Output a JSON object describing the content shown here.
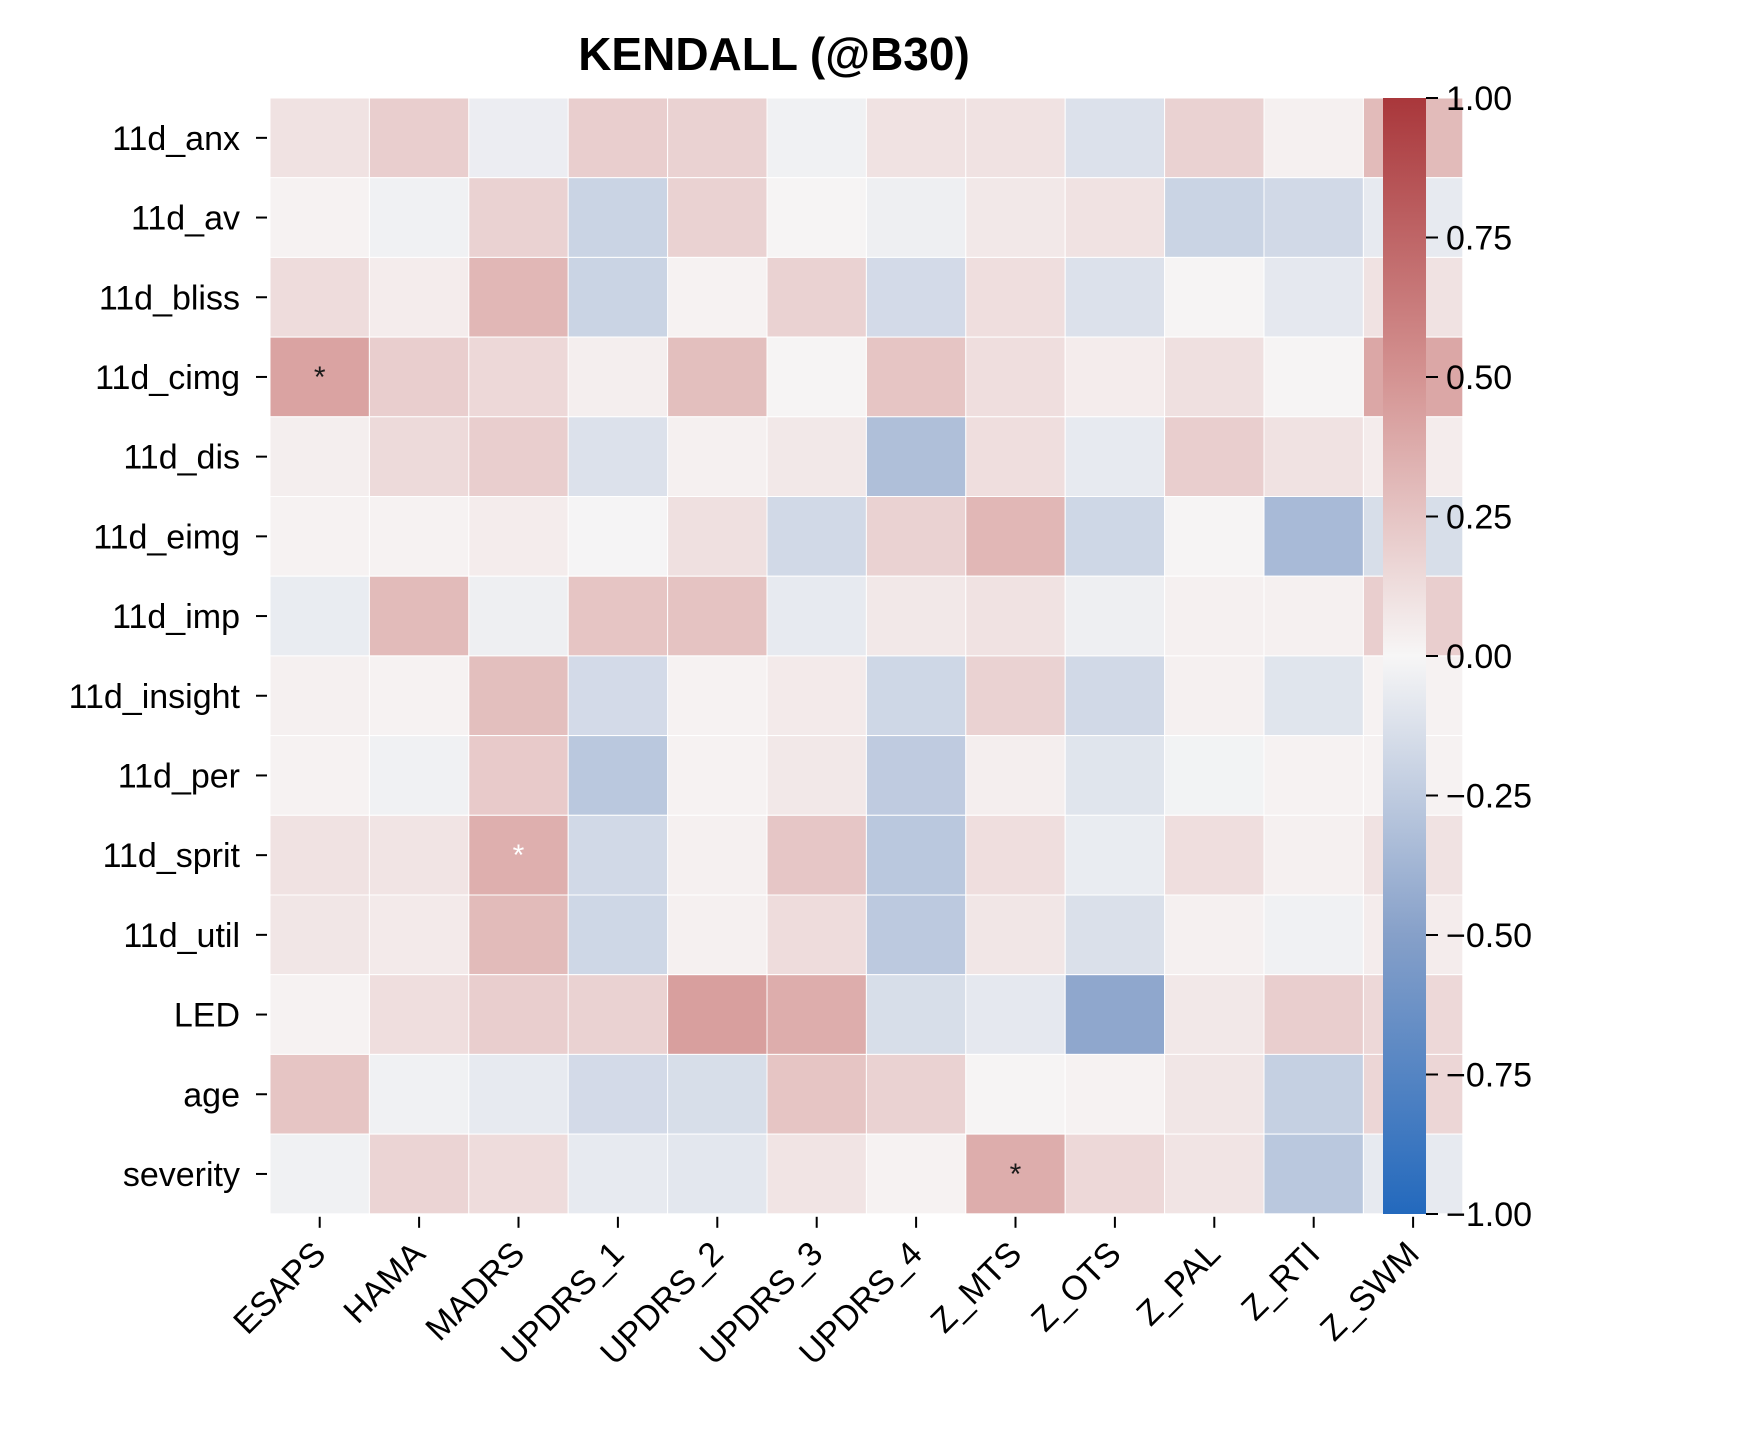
{
  "chart_data": {
    "type": "heatmap",
    "title": "KENDALL (@B30)",
    "x_categories": [
      "ESAPS",
      "HAMA",
      "MADRS",
      "UPDRS_1",
      "UPDRS_2",
      "UPDRS_3",
      "UPDRS_4",
      "Z_MTS",
      "Z_OTS",
      "Z_PAL",
      "Z_RTI",
      "Z_SWM"
    ],
    "y_categories": [
      "11d_anx",
      "11d_av",
      "11d_bliss",
      "11d_cimg",
      "11d_dis",
      "11d_eimg",
      "11d_imp",
      "11d_insight",
      "11d_per",
      "11d_sprit",
      "11d_util",
      "LED",
      "age",
      "severity"
    ],
    "values": [
      [
        0.1,
        0.2,
        -0.05,
        0.2,
        0.18,
        -0.03,
        0.1,
        0.1,
        -0.12,
        0.18,
        0.03,
        0.3
      ],
      [
        0.02,
        -0.03,
        0.18,
        -0.2,
        0.18,
        0.01,
        -0.04,
        0.07,
        0.1,
        -0.2,
        -0.17,
        -0.07
      ],
      [
        0.13,
        0.05,
        0.32,
        -0.2,
        0.02,
        0.18,
        -0.16,
        0.12,
        -0.12,
        0.01,
        -0.08,
        0.1
      ],
      [
        0.42,
        0.2,
        0.15,
        0.04,
        0.28,
        0.01,
        0.25,
        0.12,
        0.05,
        0.11,
        0.01,
        0.4
      ],
      [
        0.04,
        0.14,
        0.2,
        -0.12,
        0.03,
        0.07,
        -0.32,
        0.12,
        -0.07,
        0.2,
        0.1,
        0.05
      ],
      [
        0.02,
        0.02,
        0.05,
        -0.01,
        0.11,
        -0.17,
        0.18,
        0.32,
        -0.18,
        0.01,
        -0.35,
        -0.14
      ],
      [
        -0.06,
        0.3,
        -0.04,
        0.25,
        0.26,
        -0.07,
        0.07,
        0.1,
        -0.04,
        0.03,
        0.03,
        0.2
      ],
      [
        0.03,
        0.02,
        0.28,
        -0.16,
        0.02,
        0.06,
        -0.18,
        0.18,
        -0.17,
        0.03,
        -0.1,
        0.02
      ],
      [
        0.02,
        -0.03,
        0.22,
        -0.27,
        0.02,
        0.07,
        -0.25,
        0.04,
        -0.1,
        -0.02,
        0.02,
        0.02
      ],
      [
        0.1,
        0.09,
        0.36,
        -0.17,
        0.03,
        0.24,
        -0.27,
        0.12,
        -0.06,
        0.12,
        0.03,
        0.1
      ],
      [
        0.08,
        0.06,
        0.3,
        -0.18,
        0.03,
        0.13,
        -0.26,
        0.08,
        -0.13,
        0.03,
        -0.03,
        0.05
      ],
      [
        0.02,
        0.12,
        0.2,
        0.18,
        0.44,
        0.37,
        -0.14,
        -0.08,
        -0.46,
        0.07,
        0.2,
        0.15
      ],
      [
        0.25,
        -0.03,
        -0.07,
        -0.16,
        -0.14,
        0.25,
        0.18,
        0.01,
        0.02,
        0.08,
        -0.22,
        0.16
      ],
      [
        -0.03,
        0.17,
        0.13,
        -0.07,
        -0.09,
        0.09,
        0.02,
        0.37,
        0.15,
        0.09,
        -0.27,
        -0.07
      ]
    ],
    "annotations": [
      {
        "row": 3,
        "col": 0,
        "text": "*",
        "color": "#1a1a1a"
      },
      {
        "row": 3,
        "col": 11,
        "text": "*",
        "color": "#1a1a1a"
      },
      {
        "row": 9,
        "col": 2,
        "text": "*",
        "color": "#ffffff"
      },
      {
        "row": 13,
        "col": 7,
        "text": "*",
        "color": "#1a1a1a"
      }
    ],
    "colorbar": {
      "vmin": -1.0,
      "vmax": 1.0,
      "ticks": [
        1.0,
        0.75,
        0.5,
        0.25,
        0.0,
        -0.25,
        -0.5,
        -0.75,
        -1.0
      ],
      "tick_labels": [
        "1.00",
        "0.75",
        "0.50",
        "0.25",
        "0.00",
        "−0.25",
        "−0.50",
        "−0.75",
        "−1.00"
      ],
      "colormap": "vlag",
      "colors": [
        "#2369bd",
        "#ffffff",
        "#a9373b"
      ]
    },
    "grid_line_color": "#ffffff",
    "xlabel": "",
    "ylabel": ""
  }
}
